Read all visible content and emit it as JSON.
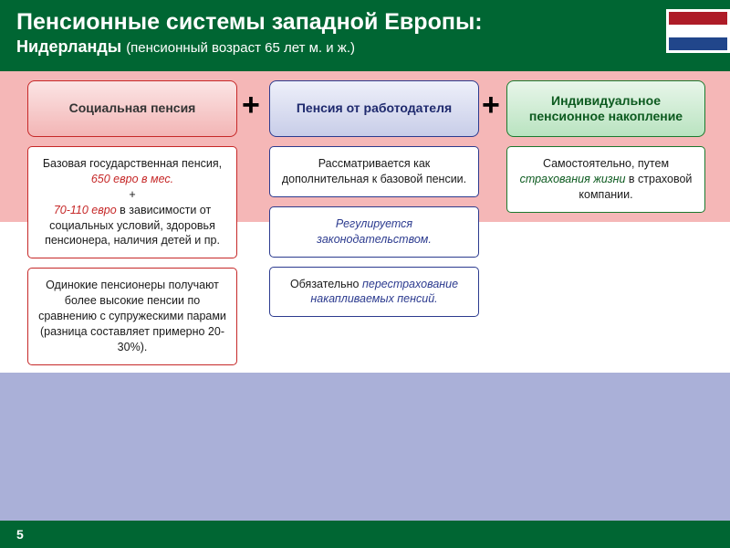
{
  "header": {
    "title": "Пенсионные системы западной Европы:",
    "subtitle_main": "Нидерланды",
    "subtitle_paren": "(пенсионный возраст 65 лет м. и ж.)"
  },
  "flag_colors": {
    "top": "#ae1c28",
    "mid": "#ffffff",
    "bot": "#21468b"
  },
  "footer": {
    "page": "5"
  },
  "plus": "+",
  "pillars": {
    "p1": "Социальная пенсия",
    "p2": "Пенсия от работодателя",
    "p3": "Индивидуальное пенсионное накопление"
  },
  "col1": {
    "box1_pre": "Базовая государственная пенсия, ",
    "box1_amt": "650 евро в мес.",
    "box1_plus": "+",
    "box1_range": "70-110 евро",
    "box1_post": " в зависимости от социальных условий, здоровья пенсионера, наличия детей и пр.",
    "box2": "Одинокие пенсионеры получают более высокие пенсии по сравнению с супружескими парами (разница составляет примерно 20-30%)."
  },
  "col2": {
    "box1": "Рассматривается как дополнительная к базовой пенсии.",
    "box2_pre": "Регулируется ",
    "box2_em": "законодательством.",
    "box3_pre": "Обязательно ",
    "box3_em": "перестрахование накапливаемых пенсий."
  },
  "col3": {
    "box1_pre": "Самостоятельно, путем ",
    "box1_em": "страхования жизни",
    "box1_post": " в страховой компании."
  }
}
